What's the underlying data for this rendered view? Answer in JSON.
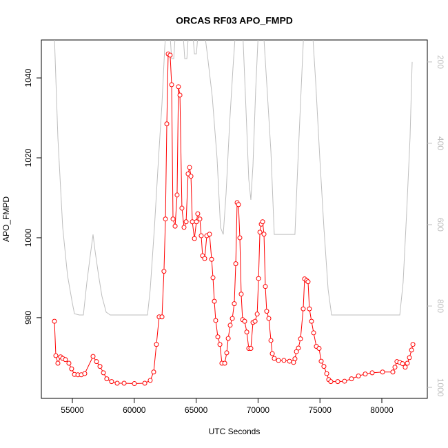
{
  "chart_data": {
    "type": "line",
    "title": "ORCAS RF03 APO_FMPD",
    "x_label": "UTC Seconds",
    "y_label": "APO_FMPD",
    "xlim": [
      52495,
      83675
    ],
    "xticks": [
      55000,
      60000,
      65000,
      70000,
      75000,
      80000
    ],
    "ylim": [
      959.8,
      1049.5
    ],
    "yticks": [
      980,
      1000,
      1020,
      1040
    ],
    "y2lim": [
      1027,
      146
    ],
    "y2ticks": [
      200,
      400,
      600,
      800,
      1000
    ],
    "y2_color": "#bebebe",
    "series": [
      {
        "color": "#ff0000",
        "marker": "circle",
        "x": [
          53552,
          53664,
          53830,
          54050,
          54220,
          54440,
          54720,
          54940,
          55170,
          55450,
          55720,
          56000,
          56670,
          56950,
          57230,
          57510,
          57780,
          58170,
          58620,
          59180,
          60010,
          60850,
          61290,
          61570,
          61790,
          62010,
          62240,
          62400,
          62520,
          62630,
          62740,
          62900,
          63020,
          63130,
          63300,
          63460,
          63570,
          63690,
          63850,
          64020,
          64190,
          64350,
          64470,
          64580,
          64690,
          64860,
          65020,
          65130,
          65300,
          65410,
          65520,
          65690,
          65860,
          66080,
          66250,
          66360,
          66470,
          66580,
          66750,
          66920,
          67080,
          67310,
          67470,
          67590,
          67750,
          67920,
          68080,
          68200,
          68310,
          68420,
          68530,
          68640,
          68750,
          68920,
          69090,
          69250,
          69420,
          69590,
          69760,
          69930,
          70040,
          70150,
          70260,
          70370,
          70480,
          70590,
          70700,
          70870,
          71040,
          71150,
          71310,
          71650,
          72090,
          72540,
          72870,
          72980,
          73100,
          73260,
          73430,
          73650,
          73760,
          73930,
          74040,
          74150,
          74320,
          74490,
          74710,
          74930,
          75100,
          75320,
          75550,
          75710,
          75880,
          76440,
          76990,
          77550,
          78110,
          78660,
          79220,
          80060,
          80890,
          81060,
          81220,
          81450,
          81670,
          81890,
          82060,
          82230,
          82400,
          82510
        ],
        "values": [
          979.1,
          970.5,
          968.6,
          970.2,
          969.8,
          969.5,
          968.6,
          967.2,
          965.8,
          965.7,
          965.7,
          966.0,
          970.3,
          969.0,
          967.8,
          966.2,
          964.7,
          964.0,
          963.6,
          963.6,
          963.5,
          963.6,
          964.3,
          966.4,
          973.3,
          980.2,
          980.2,
          991.6,
          1004.7,
          1028.5,
          1046.0,
          1045.7,
          1038.3,
          1004.7,
          1002.9,
          1010.7,
          1037.8,
          1035.7,
          1007.4,
          1002.6,
          1004.0,
          1016.0,
          1017.6,
          1015.4,
          1004.0,
          999.8,
          1004.0,
          1006.0,
          1004.7,
          1000.5,
          995.5,
          994.8,
          1000.5,
          1000.9,
          994.6,
          990.0,
          984.1,
          979.3,
          975.2,
          973.3,
          968.6,
          968.6,
          971.2,
          974.8,
          978.1,
          979.8,
          983.5,
          993.5,
          1008.8,
          1008.3,
          1000.0,
          985.9,
          979.5,
          979.1,
          976.4,
          972.3,
          972.3,
          978.8,
          979.1,
          980.9,
          989.8,
          1001.4,
          1003.4,
          1004.0,
          1000.9,
          987.8,
          981.6,
          979.8,
          974.3,
          971.0,
          969.8,
          969.3,
          969.3,
          969.1,
          968.8,
          969.7,
          971.5,
          972.4,
          974.7,
          982.2,
          989.7,
          989.3,
          989.0,
          982.2,
          979.1,
          976.2,
          972.8,
          972.3,
          969.1,
          967.8,
          966.0,
          964.5,
          964.0,
          964.0,
          964.1,
          964.7,
          965.4,
          965.9,
          966.2,
          966.4,
          966.4,
          967.6,
          969.0,
          968.8,
          968.5,
          967.6,
          968.6,
          970.0,
          971.9,
          973.3
        ]
      },
      {
        "color": "#bebebe",
        "axis": "y2",
        "x": [
          53552,
          53830,
          54220,
          54610,
          55000,
          55170,
          55560,
          55890,
          56170,
          56450,
          56670,
          56840,
          57120,
          57390,
          57730,
          58060,
          59730,
          61070,
          61290,
          61630,
          61960,
          62240,
          62460,
          62570,
          62850,
          63020,
          63190,
          63350,
          63910,
          64080,
          64250,
          64410,
          64690,
          64860,
          65020,
          65190,
          65630,
          65910,
          66300,
          66690,
          66970,
          67190,
          67420,
          67700,
          67970,
          68200,
          68750,
          69030,
          69250,
          69420,
          69590,
          69810,
          70040,
          70420,
          70700,
          71040,
          71310,
          71590,
          72980,
          73210,
          73480,
          73710,
          74380,
          74660,
          74990,
          75320,
          75660,
          75940,
          79220,
          81450,
          81720,
          82000,
          82280,
          82450
        ],
        "values": [
          140,
          386,
          607,
          725,
          793,
          819,
          822,
          822,
          742,
          675,
          624,
          666,
          725,
          776,
          815,
          822,
          822,
          822,
          759,
          607,
          437,
          302,
          166,
          115,
          115,
          192,
          192,
          115,
          115,
          192,
          192,
          115,
          115,
          180,
          180,
          115,
          115,
          183,
          285,
          437,
          607,
          624,
          522,
          353,
          217,
          115,
          115,
          319,
          488,
          539,
          454,
          268,
          115,
          115,
          251,
          420,
          624,
          624,
          624,
          454,
          268,
          115,
          115,
          251,
          437,
          607,
          759,
          822,
          822,
          822,
          742,
          573,
          386,
          200
        ]
      }
    ]
  }
}
